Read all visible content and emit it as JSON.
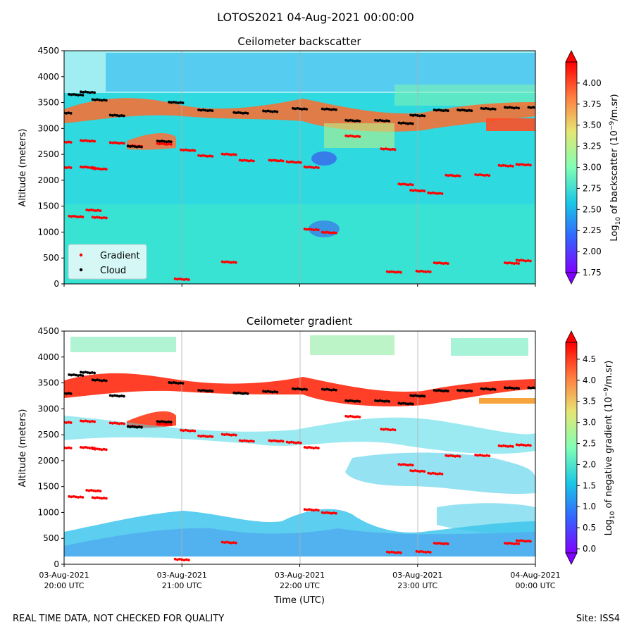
{
  "suptitle": "LOTOS2021 04-Aug-2021 00:00:00",
  "footer_left": "REAL TIME DATA, NOT CHECKED FOR QUALITY",
  "footer_right": "Site: ISS4",
  "chart_data": [
    {
      "type": "heatmap",
      "title": "Ceilometer backscatter",
      "ylabel": "Altitude (meters)",
      "ylim": [
        0,
        4500
      ],
      "yticks": [
        "0",
        "500",
        "1000",
        "1500",
        "2000",
        "2500",
        "3000",
        "3500",
        "4000",
        "4500"
      ],
      "xlim_hours_utc": [
        "03-Aug-2021 20:00",
        "04-Aug-2021 00:00"
      ],
      "colorbar": {
        "label_main": "Log",
        "label_sub": "10",
        "label_rest": " of backscatter (10",
        "label_exp": "−9",
        "label_tail": "/m.sr)",
        "range": [
          1.75,
          4.25
        ],
        "ticks": [
          "1.75",
          "2.00",
          "2.25",
          "2.50",
          "2.75",
          "3.00",
          "3.25",
          "3.50",
          "3.75",
          "4.00"
        ],
        "colormap": "rainbow"
      },
      "legend": {
        "placement": "lower-left",
        "entries": [
          {
            "name": "Gradient",
            "color": "#ff0000"
          },
          {
            "name": "Cloud",
            "color": "#000000"
          }
        ]
      },
      "series": [
        {
          "name": "Gradient",
          "points": [
            [
              20.0,
              2740
            ],
            [
              20.2,
              2760
            ],
            [
              20.45,
              2720
            ],
            [
              20.6,
              2660
            ],
            [
              20.85,
              2700
            ],
            [
              21.05,
              2580
            ],
            [
              21.2,
              2470
            ],
            [
              21.4,
              2500
            ],
            [
              21.55,
              2380
            ],
            [
              21.8,
              2380
            ],
            [
              21.95,
              2350
            ],
            [
              22.1,
              2250
            ],
            [
              22.25,
              990
            ],
            [
              22.1,
              1050
            ],
            [
              22.45,
              2850
            ],
            [
              22.75,
              2600
            ],
            [
              22.9,
              1920
            ],
            [
              23.0,
              1800
            ],
            [
              23.15,
              1750
            ],
            [
              23.3,
              2090
            ],
            [
              23.55,
              2100
            ],
            [
              23.75,
              2280
            ],
            [
              23.9,
              2300
            ],
            [
              20.0,
              2250
            ],
            [
              20.2,
              2250
            ],
            [
              20.3,
              2220
            ],
            [
              21.0,
              90
            ],
            [
              21.4,
              420
            ],
            [
              22.8,
              230
            ],
            [
              23.05,
              240
            ],
            [
              23.2,
              400
            ],
            [
              23.8,
              400
            ],
            [
              23.9,
              450
            ],
            [
              20.1,
              1300
            ],
            [
              20.25,
              1420
            ],
            [
              20.3,
              1280
            ]
          ]
        },
        {
          "name": "Cloud",
          "points": [
            [
              20.0,
              3300
            ],
            [
              20.1,
              3650
            ],
            [
              20.2,
              3700
            ],
            [
              20.3,
              3550
            ],
            [
              20.45,
              3250
            ],
            [
              20.6,
              2650
            ],
            [
              20.85,
              2750
            ],
            [
              20.95,
              3500
            ],
            [
              21.2,
              3350
            ],
            [
              21.5,
              3300
            ],
            [
              21.75,
              3330
            ],
            [
              22.0,
              3380
            ],
            [
              22.25,
              3370
            ],
            [
              22.45,
              3150
            ],
            [
              22.7,
              3150
            ],
            [
              22.9,
              3100
            ],
            [
              23.0,
              3250
            ],
            [
              23.2,
              3350
            ],
            [
              23.4,
              3350
            ],
            [
              23.6,
              3380
            ],
            [
              23.8,
              3400
            ],
            [
              24.0,
              3400
            ]
          ]
        }
      ]
    },
    {
      "type": "heatmap",
      "title": "Ceilometer gradient",
      "xlabel": "Time (UTC)",
      "ylabel": "Altitude (meters)",
      "ylim": [
        0,
        4500
      ],
      "yticks": [
        "0",
        "500",
        "1000",
        "1500",
        "2000",
        "2500",
        "3000",
        "3500",
        "4000",
        "4500"
      ],
      "xticks": [
        {
          "line1": "03-Aug-2021",
          "line2": "20:00 UTC"
        },
        {
          "line1": "03-Aug-2021",
          "line2": "21:00 UTC"
        },
        {
          "line1": "03-Aug-2021",
          "line2": "22:00 UTC"
        },
        {
          "line1": "03-Aug-2021",
          "line2": "23:00 UTC"
        },
        {
          "line1": "04-Aug-2021",
          "line2": "00:00 UTC"
        }
      ],
      "colorbar": {
        "label_main": "Log",
        "label_sub": "10",
        "label_rest": " of negative gradient (10",
        "label_exp": "−9",
        "label_tail": "/m.sr)",
        "range": [
          -0.1,
          4.9
        ],
        "ticks": [
          "0.0",
          "0.5",
          "1.0",
          "1.5",
          "2.0",
          "2.5",
          "3.0",
          "3.5",
          "4.0",
          "4.5"
        ],
        "colormap": "rainbow"
      }
    }
  ]
}
